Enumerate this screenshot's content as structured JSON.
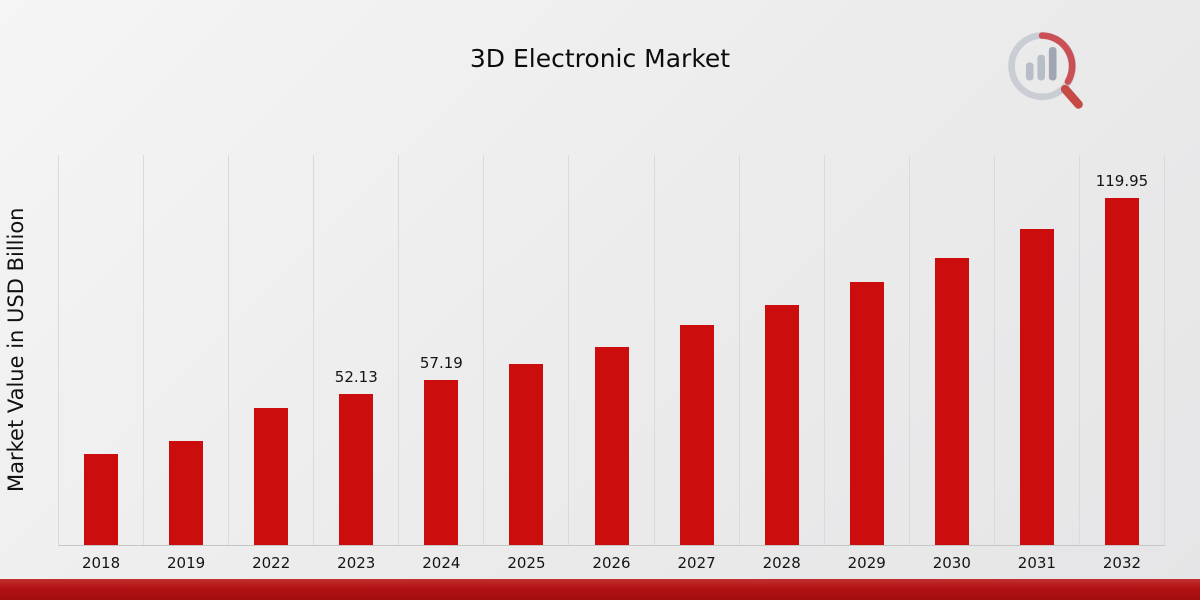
{
  "page": {
    "title": "3D Electronic Market"
  },
  "chart_data": {
    "type": "bar",
    "title": "3D Electronic Market",
    "xlabel": "",
    "ylabel": "Market Value in USD Billion",
    "categories": [
      "2018",
      "2019",
      "2022",
      "2023",
      "2024",
      "2025",
      "2026",
      "2027",
      "2028",
      "2029",
      "2030",
      "2031",
      "2032"
    ],
    "values": [
      31.5,
      36.0,
      47.5,
      52.13,
      57.19,
      62.5,
      68.5,
      76.0,
      83.0,
      91.0,
      99.5,
      109.5,
      119.95
    ],
    "value_labels": [
      "",
      "",
      "",
      "52.13",
      "57.19",
      "",
      "",
      "",
      "",
      "",
      "",
      "",
      "119.95"
    ],
    "bar_color": "#cc0d0d",
    "ylim": [
      0,
      135
    ],
    "grid": "vertical",
    "legend_position": "none"
  },
  "branding": {
    "logo_name": "market-research-logo"
  }
}
